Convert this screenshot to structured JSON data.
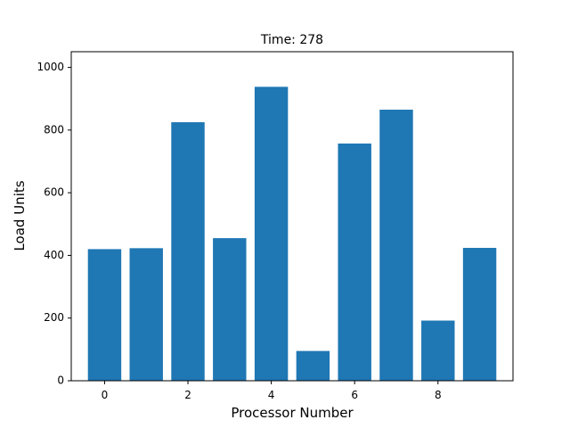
{
  "chart_data": {
    "type": "bar",
    "title": "Time: 278",
    "xlabel": "Processor Number",
    "ylabel": "Load Units",
    "categories": [
      0,
      1,
      2,
      3,
      4,
      5,
      6,
      7,
      8,
      9
    ],
    "values": [
      420,
      423,
      825,
      455,
      938,
      95,
      757,
      865,
      192,
      424
    ],
    "xlim": [
      -0.8,
      9.8
    ],
    "ylim": [
      0,
      1050
    ],
    "xticks": [
      0,
      2,
      4,
      6,
      8
    ],
    "yticks": [
      0,
      200,
      400,
      600,
      800,
      1000
    ],
    "bar_color": "#1f77b4",
    "grid": false,
    "legend": "none"
  }
}
